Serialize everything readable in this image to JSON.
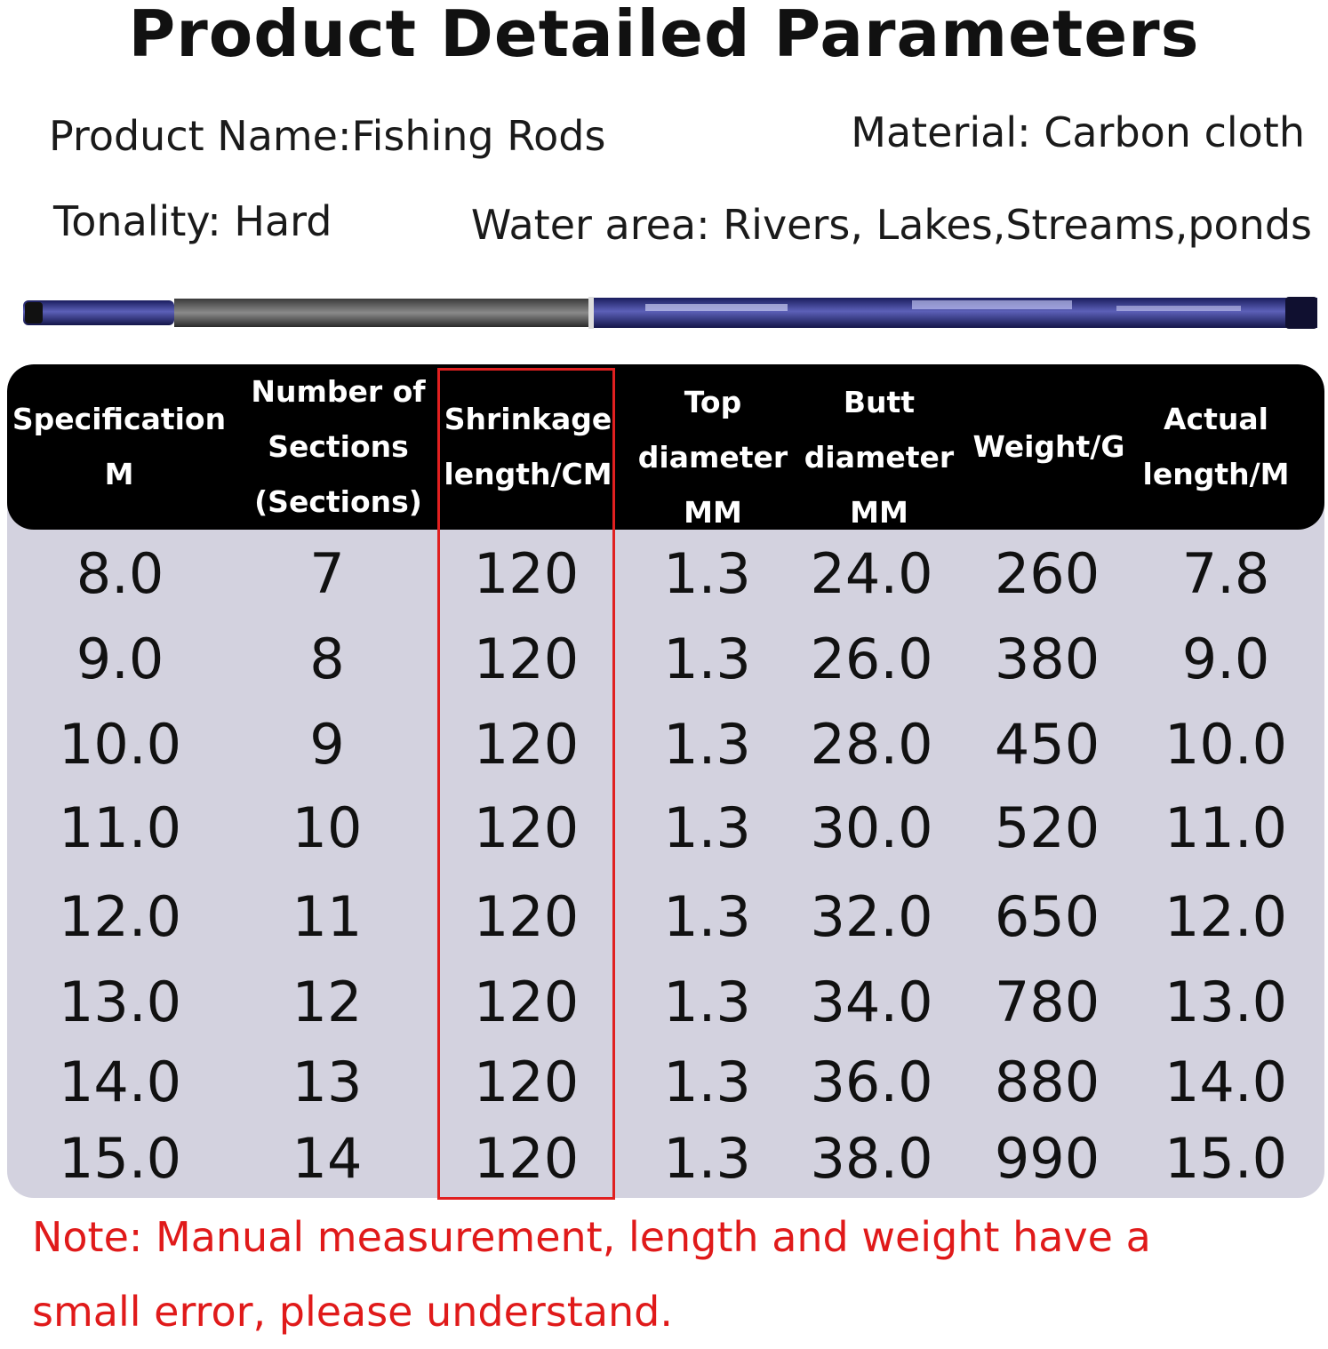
{
  "title": "Product Detailed Parameters",
  "info": {
    "product_name": "Product Name:Fishing Rods",
    "material": "Material: Carbon cloth",
    "tonality": "Tonality: Hard",
    "water_area": "Water area: Rivers, Lakes,Streams,ponds"
  },
  "colors": {
    "header_bg": "#000000",
    "table_bg": "#d3d2df",
    "highlight": "#e02020",
    "note": "#e01a1a"
  },
  "table": {
    "headers": [
      "Specification\nM",
      "Number of\nSections\n(Sections)",
      "Shrinkage\nlength/CM",
      "Top\ndiameter\nMM",
      "Butt\ndiameter\nMM",
      "Weight/G",
      "Actual\nlength/M"
    ],
    "rows": [
      [
        "8.0",
        "7",
        "120",
        "1.3",
        "24.0",
        "260",
        "7.8"
      ],
      [
        "9.0",
        "8",
        "120",
        "1.3",
        "26.0",
        "380",
        "9.0"
      ],
      [
        "10.0",
        "9",
        "120",
        "1.3",
        "28.0",
        "450",
        "10.0"
      ],
      [
        "11.0",
        "10",
        "120",
        "1.3",
        "30.0",
        "520",
        "11.0"
      ],
      [
        "12.0",
        "11",
        "120",
        "1.3",
        "32.0",
        "650",
        "12.0"
      ],
      [
        "13.0",
        "12",
        "120",
        "1.3",
        "34.0",
        "780",
        "13.0"
      ],
      [
        "14.0",
        "13",
        "120",
        "1.3",
        "36.0",
        "880",
        "14.0"
      ],
      [
        "15.0",
        "14",
        "120",
        "1.3",
        "38.0",
        "990",
        "15.0"
      ]
    ]
  },
  "note": "Note: Manual measurement, length and weight have a small error, please understand."
}
